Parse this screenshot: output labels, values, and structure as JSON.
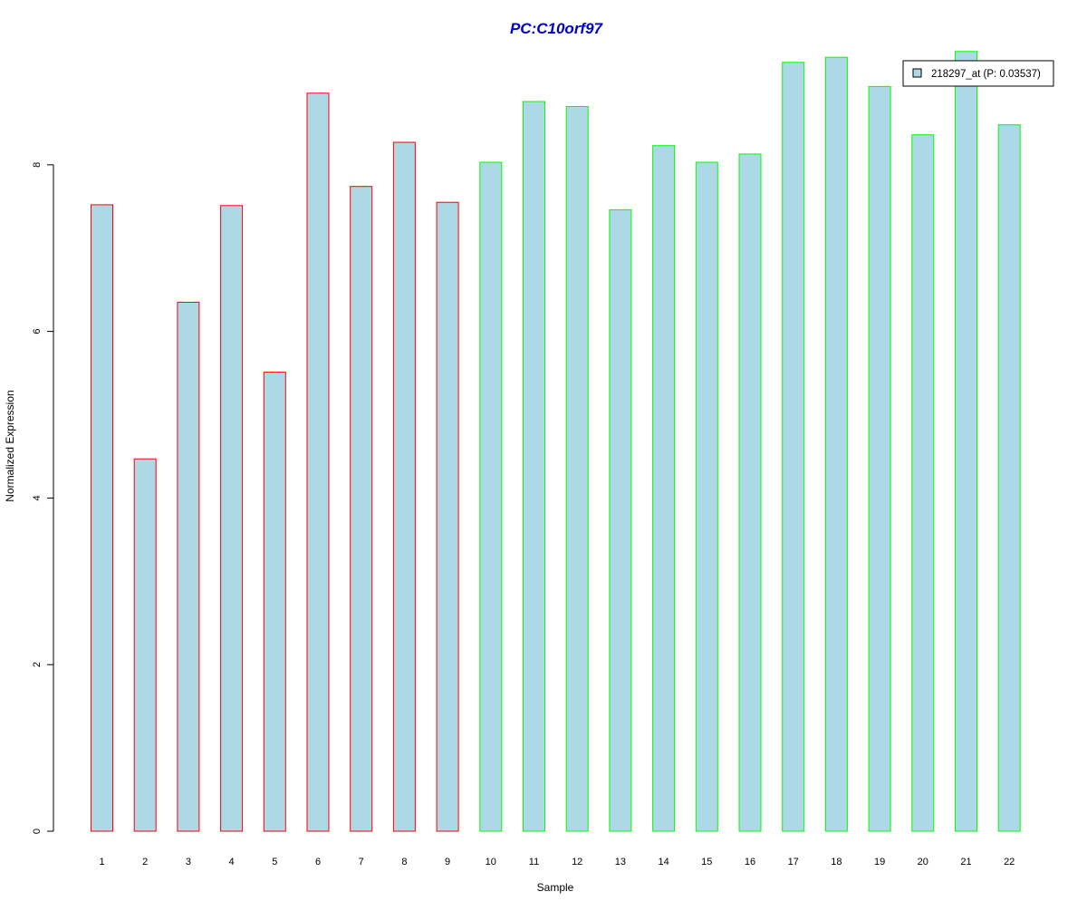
{
  "chart_data": {
    "type": "bar",
    "title": "PC:C10orf97",
    "title_color": "#0000CD",
    "xlabel": "Sample",
    "ylabel": "Normalized Expression",
    "categories": [
      "1",
      "2",
      "3",
      "4",
      "5",
      "6",
      "7",
      "8",
      "9",
      "10",
      "11",
      "12",
      "13",
      "14",
      "15",
      "16",
      "17",
      "18",
      "19",
      "20",
      "21",
      "22"
    ],
    "values": [
      7.52,
      4.47,
      6.35,
      7.51,
      5.51,
      8.86,
      7.74,
      8.27,
      7.55,
      8.03,
      8.76,
      8.7,
      7.46,
      8.23,
      8.03,
      8.13,
      9.23,
      9.29,
      8.94,
      8.36,
      9.36,
      8.48
    ],
    "groups": [
      "red",
      "red",
      "red",
      "red",
      "red",
      "red",
      "red",
      "red",
      "red",
      "green",
      "green",
      "green",
      "green",
      "green",
      "green",
      "green",
      "green",
      "green",
      "green",
      "green",
      "green",
      "green"
    ],
    "fill_color": "#ADD8E6",
    "border_colors": {
      "red": "#FF0000",
      "green": "#00FF00"
    },
    "y_ticks": [
      "0",
      "2",
      "4",
      "6",
      "8"
    ],
    "ylim": [
      0,
      9.6
    ],
    "grid": false,
    "legend": {
      "placement": "top-right",
      "entries": [
        {
          "label": "218297_at (P: 0.03537)",
          "color": "#ADD8E6"
        }
      ]
    }
  }
}
